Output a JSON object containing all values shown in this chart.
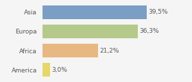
{
  "categories": [
    "America",
    "Africa",
    "Europa",
    "Asia"
  ],
  "values": [
    3.0,
    21.2,
    36.3,
    39.5
  ],
  "labels": [
    "3,0%",
    "21,2%",
    "36,3%",
    "39,5%"
  ],
  "bar_colors": [
    "#e8d66a",
    "#e8b882",
    "#b5c98a",
    "#7a9ec4"
  ],
  "background_color": "#f5f5f5",
  "xlim": [
    0,
    48
  ],
  "bar_height": 0.72,
  "label_fontsize": 6.5,
  "tick_fontsize": 6.5
}
